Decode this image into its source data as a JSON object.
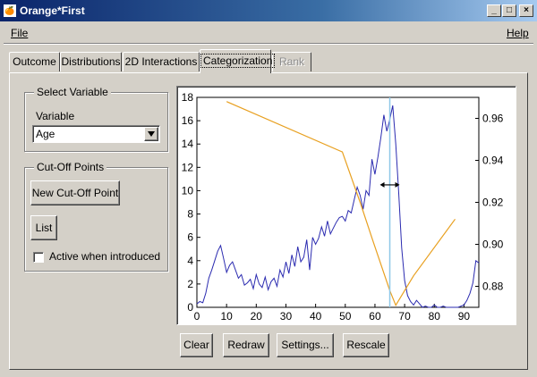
{
  "window": {
    "icon": "orange-logo-icon",
    "title": "Orange*First",
    "controls": {
      "minimize": "_",
      "maximize": "□",
      "close": "×"
    }
  },
  "menu": {
    "file": "File",
    "help": "Help"
  },
  "tabs": [
    {
      "label": "Outcome",
      "state": "normal"
    },
    {
      "label": "Distributions",
      "state": "normal"
    },
    {
      "label": "2D Interactions",
      "state": "normal"
    },
    {
      "label": "Categorization",
      "state": "active"
    },
    {
      "label": "Rank",
      "state": "disabled"
    }
  ],
  "select_variable": {
    "group_title": "Select Variable",
    "variable_label": "Variable",
    "selected_value": "Age",
    "dropdown_icon": "triangle-down-icon"
  },
  "cutoff": {
    "group_title": "Cut-Off Points",
    "new_button": "New Cut-Off Point",
    "list_button": "List",
    "checkbox_label": "Active when introduced",
    "checkbox_checked": false
  },
  "buttons": {
    "clear": "Clear",
    "redraw": "Redraw",
    "settings": "Settings...",
    "rescale": "Rescale"
  },
  "chart_data": {
    "type": "line",
    "xlim": [
      0,
      95
    ],
    "ylim": [
      0,
      18
    ],
    "y2lim": [
      0.87,
      0.97
    ],
    "x_ticks": [
      0,
      10,
      20,
      30,
      40,
      50,
      60,
      70,
      80,
      90
    ],
    "y_ticks": [
      0,
      2,
      4,
      6,
      8,
      10,
      12,
      14,
      16,
      18
    ],
    "y2_ticks": [
      0.88,
      0.9,
      0.92,
      0.94,
      0.96
    ],
    "cutoff_x": 65,
    "colors": {
      "distribution": "#2b2bb0",
      "score": "#e8a020",
      "cutoff": "#8ec8e8",
      "arrow": "#000000"
    },
    "series": [
      {
        "axis": "left",
        "x": [
          0,
          1,
          2,
          3,
          4,
          5,
          6,
          7,
          8,
          9,
          10,
          11,
          12,
          13,
          14,
          15,
          16,
          17,
          18,
          19,
          20,
          21,
          22,
          23,
          24,
          25,
          26,
          27,
          28,
          29,
          30,
          31,
          32,
          33,
          34,
          35,
          36,
          37,
          38,
          39,
          40,
          41,
          42,
          43,
          44,
          45,
          46,
          47,
          48,
          49,
          50,
          51,
          52,
          53,
          54,
          55,
          56,
          57,
          58,
          59,
          60,
          61,
          62,
          63,
          64,
          65,
          66,
          67,
          68,
          69,
          70,
          71,
          72,
          73,
          74,
          75,
          76,
          77,
          78,
          79,
          80,
          81,
          82,
          83,
          84,
          85,
          86,
          87,
          88,
          89,
          90,
          91,
          92,
          93,
          94,
          95
        ],
        "values": [
          0.3,
          0.5,
          0.4,
          1.2,
          2.5,
          3.2,
          4.0,
          4.8,
          5.3,
          4.2,
          3.0,
          3.6,
          3.9,
          3.2,
          2.5,
          2.8,
          1.9,
          2.1,
          2.4,
          1.6,
          2.8,
          2.0,
          1.7,
          2.6,
          1.5,
          2.2,
          2.5,
          1.8,
          3.2,
          2.6,
          3.9,
          2.9,
          4.5,
          3.5,
          5.2,
          3.9,
          4.3,
          5.8,
          3.2,
          6.0,
          5.4,
          5.9,
          6.9,
          6.1,
          7.4,
          6.3,
          6.8,
          7.3,
          7.7,
          7.8,
          7.4,
          8.3,
          8.1,
          9.2,
          10.3,
          9.6,
          8.4,
          10.0,
          9.6,
          12.7,
          11.4,
          12.9,
          14.6,
          16.5,
          15.1,
          16.1,
          17.3,
          14.0,
          9.8,
          5.1,
          2.3,
          1.0,
          0.5,
          0.2,
          0.6,
          0.3,
          0.0,
          0.1,
          0.0,
          0.0,
          0.2,
          0.0,
          0.0,
          0.1,
          0.0,
          0.0,
          0.0,
          0.0,
          0.0,
          0.1,
          0.2,
          0.6,
          1.2,
          2.1,
          4.0,
          3.8
        ]
      },
      {
        "axis": "right",
        "x": [
          10,
          49,
          55,
          59,
          65,
          67,
          73,
          87
        ],
        "values": [
          0.968,
          0.944,
          0.92,
          0.903,
          0.878,
          0.871,
          0.885,
          0.912
        ]
      }
    ]
  }
}
